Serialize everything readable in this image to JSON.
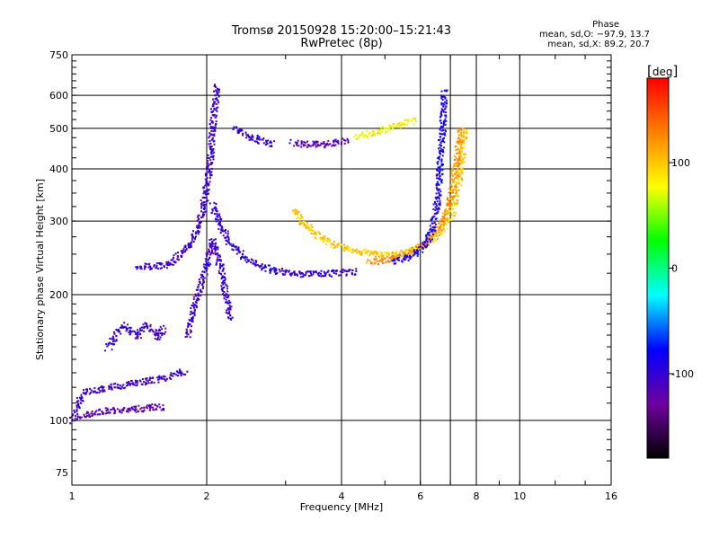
{
  "header": {
    "title": "Tromsø 20150928 15:20:00–15:21:43",
    "subtitle": "RwPretec (8p)"
  },
  "phase_info": {
    "heading": "Phase",
    "line_o": "mean, sd,O: −97.9, 13.7",
    "line_x": "mean, sd,X:  89.2, 20.7"
  },
  "colorbar": {
    "unit": "deg",
    "ticks": [
      100,
      0,
      -100
    ],
    "range": [
      -180,
      180
    ],
    "colors": [
      "#000000",
      "#7000a0",
      "#0000ff",
      "#00ffff",
      "#00ff00",
      "#ffff00",
      "#ff8000",
      "#ff0000"
    ]
  },
  "chart_data": {
    "type": "scatter",
    "title": "Tromsø 20150928 15:20:00–15:21:43",
    "subtitle": "RwPretec (8p)",
    "xlabel": "Frequency [MHz]",
    "ylabel": "Stationary phase Virtual Height [km]",
    "xscale": "log",
    "yscale": "log",
    "xlim": [
      1,
      16
    ],
    "ylim": [
      70,
      750
    ],
    "xticks": [
      1,
      2,
      4,
      6,
      8,
      10,
      16
    ],
    "yticks": [
      75,
      100,
      200,
      300,
      400,
      500,
      600,
      750
    ],
    "grid": true,
    "series": [
      {
        "points": [
          [
            1.0,
            100
          ],
          [
            1.03,
            110
          ],
          [
            1.06,
            117
          ],
          [
            1.1,
            118
          ],
          [
            1.15,
            119
          ],
          [
            1.2,
            120
          ],
          [
            1.3,
            122
          ],
          [
            1.4,
            124
          ],
          [
            1.5,
            125
          ],
          [
            1.6,
            127
          ],
          [
            1.7,
            130
          ],
          [
            1.78,
            132
          ]
        ],
        "phase": -105
      },
      {
        "points": [
          [
            1.05,
            102
          ],
          [
            1.1,
            104
          ],
          [
            1.2,
            106
          ],
          [
            1.3,
            106
          ],
          [
            1.4,
            107
          ],
          [
            1.5,
            108
          ],
          [
            1.6,
            108
          ]
        ],
        "phase": -120
      },
      {
        "points": [
          [
            1.2,
            150
          ],
          [
            1.25,
            162
          ],
          [
            1.3,
            170
          ],
          [
            1.35,
            165
          ],
          [
            1.4,
            160
          ],
          [
            1.45,
            170
          ],
          [
            1.5,
            165
          ],
          [
            1.55,
            158
          ],
          [
            1.6,
            168
          ]
        ],
        "phase": -105
      },
      {
        "points": [
          [
            1.4,
            235
          ],
          [
            1.5,
            235
          ],
          [
            1.6,
            236
          ],
          [
            1.65,
            238
          ],
          [
            1.7,
            245
          ],
          [
            1.75,
            252
          ],
          [
            1.8,
            260
          ],
          [
            1.85,
            270
          ],
          [
            1.9,
            290
          ],
          [
            1.95,
            320
          ],
          [
            2.0,
            370
          ],
          [
            2.03,
            420
          ],
          [
            2.05,
            500
          ],
          [
            2.08,
            580
          ],
          [
            2.1,
            640
          ]
        ],
        "phase": -105
      },
      {
        "points": [
          [
            1.8,
            160
          ],
          [
            1.85,
            180
          ],
          [
            1.9,
            200
          ],
          [
            1.95,
            220
          ],
          [
            2.0,
            240
          ],
          [
            2.05,
            270
          ],
          [
            2.1,
            250
          ],
          [
            2.15,
            230
          ],
          [
            2.2,
            200
          ],
          [
            2.25,
            175
          ]
        ],
        "phase": -105
      },
      {
        "points": [
          [
            2.05,
            330
          ],
          [
            2.15,
            290
          ],
          [
            2.25,
            265
          ],
          [
            2.4,
            248
          ],
          [
            2.6,
            236
          ],
          [
            2.8,
            230
          ],
          [
            3.0,
            226
          ],
          [
            3.3,
            225
          ],
          [
            3.6,
            225
          ],
          [
            4.0,
            227
          ],
          [
            4.3,
            228
          ]
        ],
        "phase": -100
      },
      {
        "points": [
          [
            2.3,
            500
          ],
          [
            2.4,
            490
          ],
          [
            2.6,
            470
          ],
          [
            2.8,
            460
          ]
        ],
        "phase": -100
      },
      {
        "points": [
          [
            3.1,
            465
          ],
          [
            3.3,
            460
          ],
          [
            3.6,
            460
          ],
          [
            3.9,
            465
          ],
          [
            4.1,
            470
          ]
        ],
        "phase": -115
      },
      {
        "points": [
          [
            4.3,
            480
          ],
          [
            4.6,
            488
          ],
          [
            5.0,
            500
          ],
          [
            5.4,
            515
          ],
          [
            5.8,
            525
          ]
        ],
        "phase": 80
      },
      {
        "points": [
          [
            3.1,
            320
          ],
          [
            3.3,
            295
          ],
          [
            3.5,
            280
          ],
          [
            3.8,
            265
          ],
          [
            4.2,
            257
          ],
          [
            4.6,
            253
          ],
          [
            5.0,
            250
          ],
          [
            5.4,
            252
          ],
          [
            5.8,
            258
          ],
          [
            6.2,
            268
          ],
          [
            6.6,
            282
          ],
          [
            7.0,
            310
          ],
          [
            7.2,
            350
          ],
          [
            7.35,
            400
          ],
          [
            7.45,
            460
          ],
          [
            7.5,
            500
          ]
        ],
        "phase": 100
      },
      {
        "points": [
          [
            4.6,
            240
          ],
          [
            5.0,
            243
          ],
          [
            5.5,
            250
          ],
          [
            6.0,
            262
          ],
          [
            6.4,
            280
          ],
          [
            6.8,
            310
          ],
          [
            7.0,
            350
          ],
          [
            7.2,
            420
          ],
          [
            7.35,
            500
          ]
        ],
        "phase": 120
      },
      {
        "points": [
          [
            5.2,
            240
          ],
          [
            5.5,
            245
          ],
          [
            5.8,
            252
          ],
          [
            6.1,
            263
          ],
          [
            6.3,
            280
          ],
          [
            6.45,
            310
          ],
          [
            6.55,
            350
          ],
          [
            6.6,
            400
          ],
          [
            6.65,
            450
          ],
          [
            6.7,
            500
          ],
          [
            6.72,
            560
          ],
          [
            6.75,
            620
          ]
        ],
        "phase": -90
      }
    ]
  }
}
